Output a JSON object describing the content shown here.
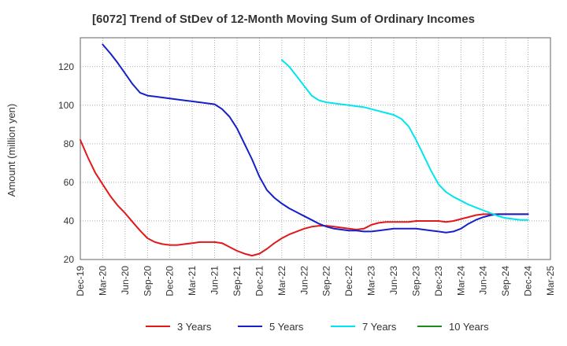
{
  "chart_data": {
    "type": "line",
    "title": "[6072]  Trend of StDev of 12-Month Moving Sum of Ordinary Incomes",
    "ylabel": "Amount (million yen)",
    "xlabel": "",
    "ylim": [
      20,
      135
    ],
    "yticks": [
      20,
      40,
      60,
      80,
      100,
      120
    ],
    "x_start": "Dec-19",
    "x_end": "Mar-25",
    "x_tick_labels": [
      "Dec-19",
      "Mar-20",
      "Jun-20",
      "Sep-20",
      "Dec-20",
      "Mar-21",
      "Jun-21",
      "Sep-21",
      "Dec-21",
      "Mar-22",
      "Jun-22",
      "Sep-22",
      "Dec-22",
      "Mar-23",
      "Jun-23",
      "Sep-23",
      "Dec-23",
      "Mar-24",
      "Jun-24",
      "Sep-24",
      "Dec-24",
      "Mar-25"
    ],
    "grid": true,
    "legend_position": "bottom",
    "series": [
      {
        "name": "3 Years",
        "color": "#e0191b",
        "x": [
          "Dec-19",
          "Jan-20",
          "Feb-20",
          "Mar-20",
          "Apr-20",
          "May-20",
          "Jun-20",
          "Jul-20",
          "Aug-20",
          "Sep-20",
          "Oct-20",
          "Nov-20",
          "Dec-20",
          "Jan-21",
          "Feb-21",
          "Mar-21",
          "Apr-21",
          "May-21",
          "Jun-21",
          "Jul-21",
          "Aug-21",
          "Sep-21",
          "Oct-21",
          "Nov-21",
          "Dec-21",
          "Jan-22",
          "Feb-22",
          "Mar-22",
          "Apr-22",
          "May-22",
          "Jun-22",
          "Jul-22",
          "Aug-22",
          "Sep-22",
          "Oct-22",
          "Nov-22",
          "Dec-22",
          "Jan-23",
          "Feb-23",
          "Mar-23",
          "Apr-23",
          "May-23",
          "Jun-23",
          "Jul-23",
          "Aug-23",
          "Sep-23",
          "Oct-23",
          "Nov-23",
          "Dec-23",
          "Jan-24",
          "Feb-24",
          "Mar-24",
          "Apr-24",
          "May-24",
          "Jun-24",
          "Jul-24",
          "Aug-24",
          "Sep-24",
          "Oct-24",
          "Nov-24",
          "Dec-24"
        ],
        "values": [
          82,
          73,
          65,
          59,
          53,
          48,
          44,
          39.5,
          35,
          31,
          29,
          28,
          27.5,
          27.5,
          28,
          28.5,
          29,
          29,
          29,
          28.5,
          26.5,
          24.5,
          23,
          22,
          23,
          25.5,
          28.5,
          31,
          33,
          34.5,
          36,
          37,
          37.5,
          37.5,
          37,
          36.5,
          36,
          35.5,
          36,
          38,
          39,
          39.5,
          39.5,
          39.5,
          39.5,
          40,
          40,
          40,
          40,
          39.5,
          40,
          41,
          42,
          43,
          43.5,
          43.5,
          43.5,
          43.5,
          43.5,
          43.5,
          43.5
        ]
      },
      {
        "name": "5 Years",
        "color": "#1520c8",
        "x": [
          "Mar-20",
          "Apr-20",
          "May-20",
          "Jun-20",
          "Jul-20",
          "Aug-20",
          "Sep-20",
          "Oct-20",
          "Nov-20",
          "Dec-20",
          "Jan-21",
          "Feb-21",
          "Mar-21",
          "Apr-21",
          "May-21",
          "Jun-21",
          "Jul-21",
          "Aug-21",
          "Sep-21",
          "Oct-21",
          "Nov-21",
          "Dec-21",
          "Jan-22",
          "Feb-22",
          "Mar-22",
          "Apr-22",
          "May-22",
          "Jun-22",
          "Jul-22",
          "Aug-22",
          "Sep-22",
          "Oct-22",
          "Nov-22",
          "Dec-22",
          "Jan-23",
          "Feb-23",
          "Mar-23",
          "Apr-23",
          "May-23",
          "Jun-23",
          "Jul-23",
          "Aug-23",
          "Sep-23",
          "Oct-23",
          "Nov-23",
          "Dec-23",
          "Jan-24",
          "Feb-24",
          "Mar-24",
          "Apr-24",
          "May-24",
          "Jun-24",
          "Jul-24",
          "Aug-24",
          "Sep-24",
          "Oct-24",
          "Nov-24",
          "Dec-24"
        ],
        "values": [
          131.5,
          127,
          122,
          116.5,
          111,
          106.5,
          105,
          104.5,
          104,
          103.5,
          103,
          102.5,
          102,
          101.5,
          101,
          100.5,
          98,
          94,
          88,
          80,
          72,
          63,
          56,
          52,
          49,
          46.5,
          44.5,
          42.5,
          40.5,
          38.5,
          37,
          36,
          35.5,
          35,
          35,
          34.5,
          34.5,
          35,
          35.5,
          36,
          36,
          36,
          36,
          35.5,
          35,
          34.5,
          34,
          34.5,
          36,
          38.5,
          40.5,
          42,
          43,
          43.5,
          43.5,
          43.5,
          43.5,
          43.5
        ]
      },
      {
        "name": "7 Years",
        "color": "#00e5ef",
        "x": [
          "Mar-22",
          "Apr-22",
          "May-22",
          "Jun-22",
          "Jul-22",
          "Aug-22",
          "Sep-22",
          "Oct-22",
          "Nov-22",
          "Dec-22",
          "Jan-23",
          "Feb-23",
          "Mar-23",
          "Apr-23",
          "May-23",
          "Jun-23",
          "Jul-23",
          "Aug-23",
          "Sep-23",
          "Oct-23",
          "Nov-23",
          "Dec-23",
          "Jan-24",
          "Feb-24",
          "Mar-24",
          "Apr-24",
          "May-24",
          "Jun-24",
          "Jul-24",
          "Aug-24",
          "Sep-24",
          "Oct-24",
          "Nov-24",
          "Dec-24"
        ],
        "values": [
          123.5,
          120,
          115,
          110,
          105,
          102.5,
          101.5,
          101,
          100.5,
          100,
          99.5,
          99,
          98,
          97,
          96,
          95,
          93,
          89,
          82,
          74,
          66,
          59,
          55,
          52.5,
          50.5,
          48.5,
          47,
          45.5,
          44,
          42.5,
          41.5,
          41,
          40.5,
          40.5
        ]
      },
      {
        "name": "10 Years",
        "color": "#1f8a1f",
        "x": [],
        "values": []
      }
    ]
  }
}
